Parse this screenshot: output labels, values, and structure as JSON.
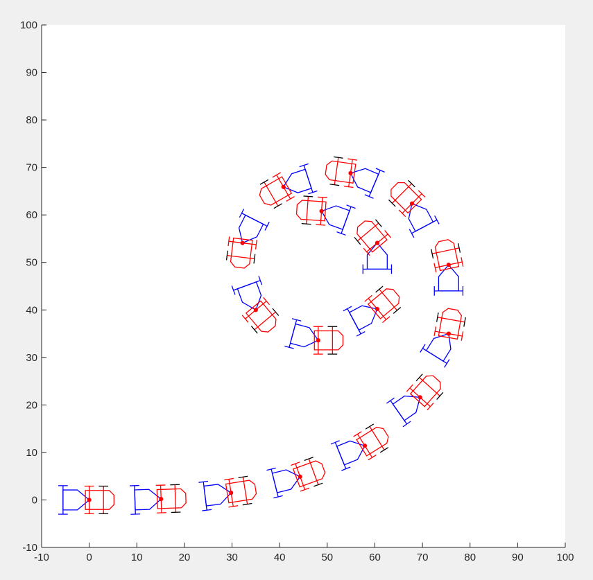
{
  "chart_data": {
    "type": "scatter",
    "title": "",
    "xlabel": "",
    "ylabel": "",
    "xlim": [
      -10,
      100
    ],
    "ylim": [
      -10,
      100
    ],
    "grid": false,
    "xticks": [
      -10,
      0,
      10,
      20,
      30,
      40,
      50,
      60,
      70,
      80,
      90,
      100
    ],
    "yticks": [
      -10,
      0,
      10,
      20,
      30,
      40,
      50,
      60,
      70,
      80,
      90,
      100
    ],
    "xtick_labels": [
      "-10",
      "0",
      "10",
      "20",
      "30",
      "40",
      "50",
      "60",
      "70",
      "80",
      "90",
      "100"
    ],
    "ytick_labels": [
      "-10",
      "0",
      "10",
      "20",
      "30",
      "40",
      "50",
      "60",
      "70",
      "80",
      "90",
      "100"
    ],
    "series": [
      {
        "color": "#ff0000",
        "wheel_color": "#000000",
        "points": [
          {
            "x": 0,
            "y": 0,
            "heading": 0
          },
          {
            "x": 15.1,
            "y": 0.2,
            "heading": 2
          },
          {
            "x": 29.8,
            "y": 1.5,
            "heading": 9
          },
          {
            "x": 44.3,
            "y": 4.9,
            "heading": 20
          },
          {
            "x": 57.9,
            "y": 11.4,
            "heading": 32
          },
          {
            "x": 69.5,
            "y": 21.6,
            "heading": 48
          },
          {
            "x": 75.5,
            "y": 35,
            "heading": 80
          },
          {
            "x": 75.5,
            "y": 49.5,
            "heading": 102
          },
          {
            "x": 67.8,
            "y": 62.4,
            "heading": 135
          },
          {
            "x": 54.9,
            "y": 68.8,
            "heading": 172
          },
          {
            "x": 40.8,
            "y": 65.9,
            "heading": 210
          },
          {
            "x": 32.2,
            "y": 54.1,
            "heading": 263
          },
          {
            "x": 35,
            "y": 40,
            "heading": 310
          },
          {
            "x": 48.1,
            "y": 33.6,
            "heading": 0
          },
          {
            "x": 60.5,
            "y": 40.2,
            "heading": 40
          },
          {
            "x": 60.5,
            "y": 54.1,
            "heading": 130
          },
          {
            "x": 48.8,
            "y": 60.8,
            "heading": 176
          }
        ]
      },
      {
        "color": "#0000ff",
        "points": [
          {
            "x": 0,
            "y": 0,
            "heading": 0
          },
          {
            "x": 15.1,
            "y": 0.2,
            "heading": 2
          },
          {
            "x": 29.8,
            "y": 1.5,
            "heading": 7
          },
          {
            "x": 44.3,
            "y": 4.9,
            "heading": 14
          },
          {
            "x": 57.9,
            "y": 11.4,
            "heading": 22
          },
          {
            "x": 69.5,
            "y": 21.6,
            "heading": 35
          },
          {
            "x": 75.5,
            "y": 35,
            "heading": 58
          },
          {
            "x": 75.5,
            "y": 49.5,
            "heading": 90
          },
          {
            "x": 67.8,
            "y": 62.4,
            "heading": 118
          },
          {
            "x": 54.9,
            "y": 68.8,
            "heading": 157
          },
          {
            "x": 40.8,
            "y": 65.9,
            "heading": 198
          },
          {
            "x": 32.2,
            "y": 54.1,
            "heading": 243
          },
          {
            "x": 35,
            "y": 40,
            "heading": 290
          },
          {
            "x": 48.1,
            "y": 33.6,
            "heading": 345
          },
          {
            "x": 60.5,
            "y": 40.2,
            "heading": 28
          },
          {
            "x": 60.5,
            "y": 54.1,
            "heading": 90
          },
          {
            "x": 48.8,
            "y": 60.8,
            "heading": 160
          }
        ]
      }
    ]
  }
}
